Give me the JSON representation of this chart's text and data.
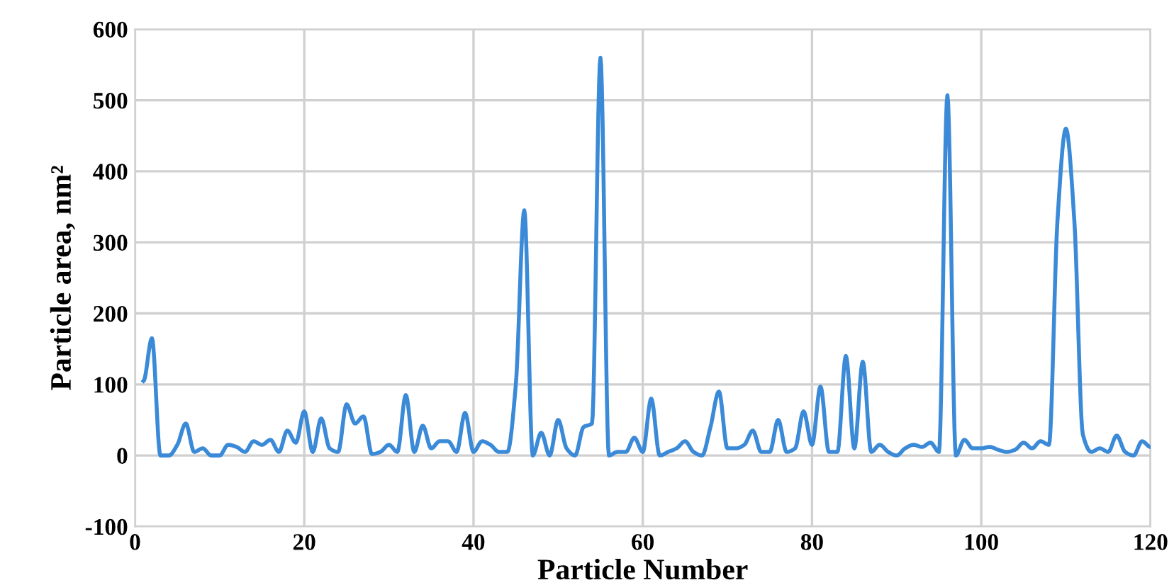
{
  "chart_data": {
    "type": "line",
    "xlabel": "Particle Number",
    "ylabel": "Particle area, nm²",
    "x": [
      1,
      2,
      3,
      4,
      5,
      6,
      7,
      8,
      9,
      10,
      11,
      12,
      13,
      14,
      15,
      16,
      17,
      18,
      19,
      20,
      21,
      22,
      23,
      24,
      25,
      26,
      27,
      28,
      29,
      30,
      31,
      32,
      33,
      34,
      35,
      36,
      37,
      38,
      39,
      40,
      41,
      42,
      43,
      44,
      45,
      46,
      47,
      48,
      49,
      50,
      51,
      52,
      53,
      54,
      55,
      56,
      57,
      58,
      59,
      60,
      61,
      62,
      63,
      64,
      65,
      66,
      67,
      68,
      69,
      70,
      71,
      72,
      73,
      74,
      75,
      76,
      77,
      78,
      79,
      80,
      81,
      82,
      83,
      84,
      85,
      86,
      87,
      88,
      89,
      90,
      91,
      92,
      93,
      94,
      95,
      96,
      97,
      98,
      99,
      100,
      101,
      102,
      103,
      104,
      105,
      106,
      107,
      108,
      109,
      110,
      111,
      112,
      113,
      114,
      115,
      116,
      117,
      118,
      119,
      120
    ],
    "series": [
      {
        "color": "#3b8ad8",
        "values": [
          105,
          165,
          0,
          0,
          15,
          45,
          5,
          10,
          0,
          0,
          15,
          12,
          5,
          20,
          15,
          22,
          5,
          35,
          18,
          62,
          5,
          52,
          10,
          5,
          72,
          45,
          55,
          2,
          5,
          15,
          5,
          85,
          5,
          42,
          10,
          20,
          20,
          5,
          60,
          5,
          20,
          15,
          5,
          5,
          100,
          345,
          0,
          32,
          0,
          50,
          10,
          0,
          40,
          45,
          560,
          0,
          5,
          5,
          25,
          5,
          80,
          0,
          5,
          10,
          20,
          5,
          0,
          40,
          90,
          10,
          10,
          15,
          35,
          5,
          5,
          50,
          5,
          10,
          62,
          15,
          97,
          5,
          5,
          140,
          10,
          132,
          5,
          15,
          5,
          0,
          10,
          15,
          12,
          18,
          5,
          507,
          0,
          22,
          10,
          10,
          12,
          8,
          5,
          8,
          18,
          10,
          20,
          15,
          330,
          460,
          330,
          30,
          5,
          10,
          5,
          28,
          5,
          0,
          20,
          12
        ]
      }
    ],
    "xlim": [
      0,
      120
    ],
    "ylim": [
      -100,
      600
    ],
    "xticks": [
      0,
      20,
      40,
      60,
      80,
      100,
      120
    ],
    "yticks": [
      -100,
      0,
      100,
      200,
      300,
      400,
      500,
      600
    ],
    "grid": true,
    "marker": "none",
    "line_style": "solid",
    "legend": false
  }
}
